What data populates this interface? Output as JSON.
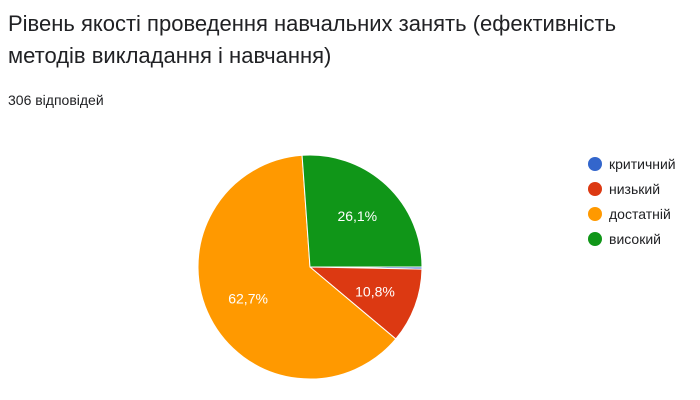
{
  "header": {
    "title": "Рівень якості проведення навчальних занять (ефективність методів викладання і навчання)",
    "responses_label": "306 відповідей"
  },
  "chart_data": {
    "type": "pie",
    "title": "Рівень якості проведення навчальних занять (ефективність методів викладання і навчання)",
    "categories": [
      "критичний",
      "низький",
      "достатній",
      "високий"
    ],
    "values": [
      0.3,
      10.8,
      62.7,
      26.1
    ],
    "labels": [
      "",
      "10,8%",
      "62,7%",
      "26,1%"
    ],
    "colors": [
      "#3366cc",
      "#dc3912",
      "#ff9900",
      "#109618"
    ],
    "legend": "right",
    "start_angle_deg": 90,
    "direction": "clockwise"
  }
}
